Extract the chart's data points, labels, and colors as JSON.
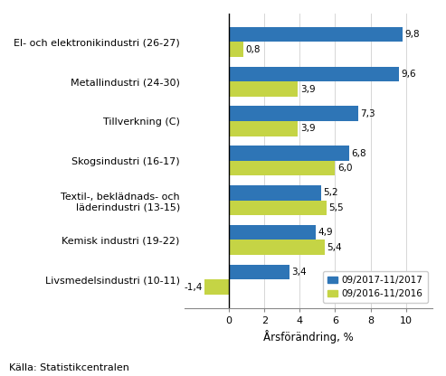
{
  "categories": [
    "El- och elektronikindustri (26-27)",
    "Metallindustri (24-30)",
    "Tillverkning (C)",
    "Skogsindustri (16-17)",
    "Textil-, beklädnads- och\nläderindustri (13-15)",
    "Kemisk industri (19-22)",
    "Livsmedelsindustri (10-11)"
  ],
  "values_2017": [
    9.8,
    9.6,
    7.3,
    6.8,
    5.2,
    4.9,
    3.4
  ],
  "values_2016": [
    0.8,
    3.9,
    3.9,
    6.0,
    5.5,
    5.4,
    -1.4
  ],
  "color_2017": "#2e75b6",
  "color_2016": "#c5d445",
  "legend_2017": "09/2017-11/2017",
  "legend_2016": "09/2016-11/2016",
  "xlabel": "Årsförändring, %",
  "source": "Källa: Statistikcentralen",
  "xlim": [
    -2.5,
    11.5
  ],
  "bar_height": 0.38,
  "background_color": "#ffffff",
  "label_fontsize": 8.0,
  "value_fontsize": 7.5,
  "xlabel_fontsize": 8.5,
  "source_fontsize": 8.0
}
